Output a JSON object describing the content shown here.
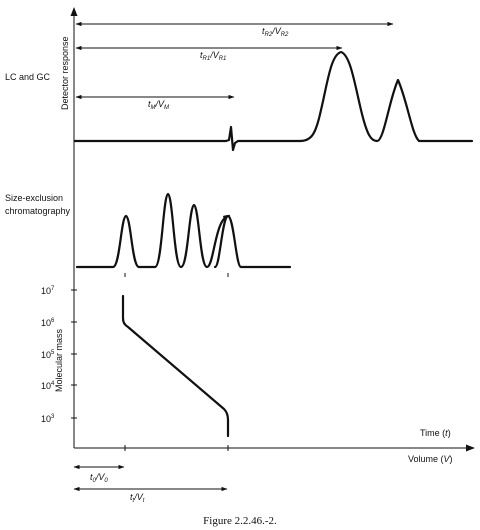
{
  "labels": {
    "detector_response": "Detector response",
    "lc_gc": "LC and GC",
    "sec_line1": "Size-exclusion",
    "sec_line2": "chromatography",
    "molecular_mass": "Molecular mass",
    "time": "Time (",
    "time_sym": "t",
    "time_close": ")",
    "volume": "Volume (",
    "volume_sym": "V",
    "volume_close": ")"
  },
  "arrows": {
    "tR2": {
      "t": "t",
      "t_sub": "R2",
      "v": "V",
      "v_sub": "R2"
    },
    "tR1": {
      "t": "t",
      "t_sub": "R1",
      "v": "V",
      "v_sub": "R1"
    },
    "tM": {
      "t": "t",
      "t_sub": "M",
      "v": "V",
      "v_sub": "M"
    },
    "t0": {
      "t": "t",
      "t_sub": "0",
      "v": "V",
      "v_sub": "0"
    },
    "tt": {
      "t": "t",
      "t_sub": "t",
      "v": "V",
      "v_sub": "t"
    }
  },
  "mass_ticks": [
    {
      "base": "10",
      "exp": "7"
    },
    {
      "base": "10",
      "exp": "6"
    },
    {
      "base": "10",
      "exp": "5"
    },
    {
      "base": "10",
      "exp": "4"
    },
    {
      "base": "10",
      "exp": "3"
    }
  ],
  "caption": "Figure 2.2.46.-2."
}
